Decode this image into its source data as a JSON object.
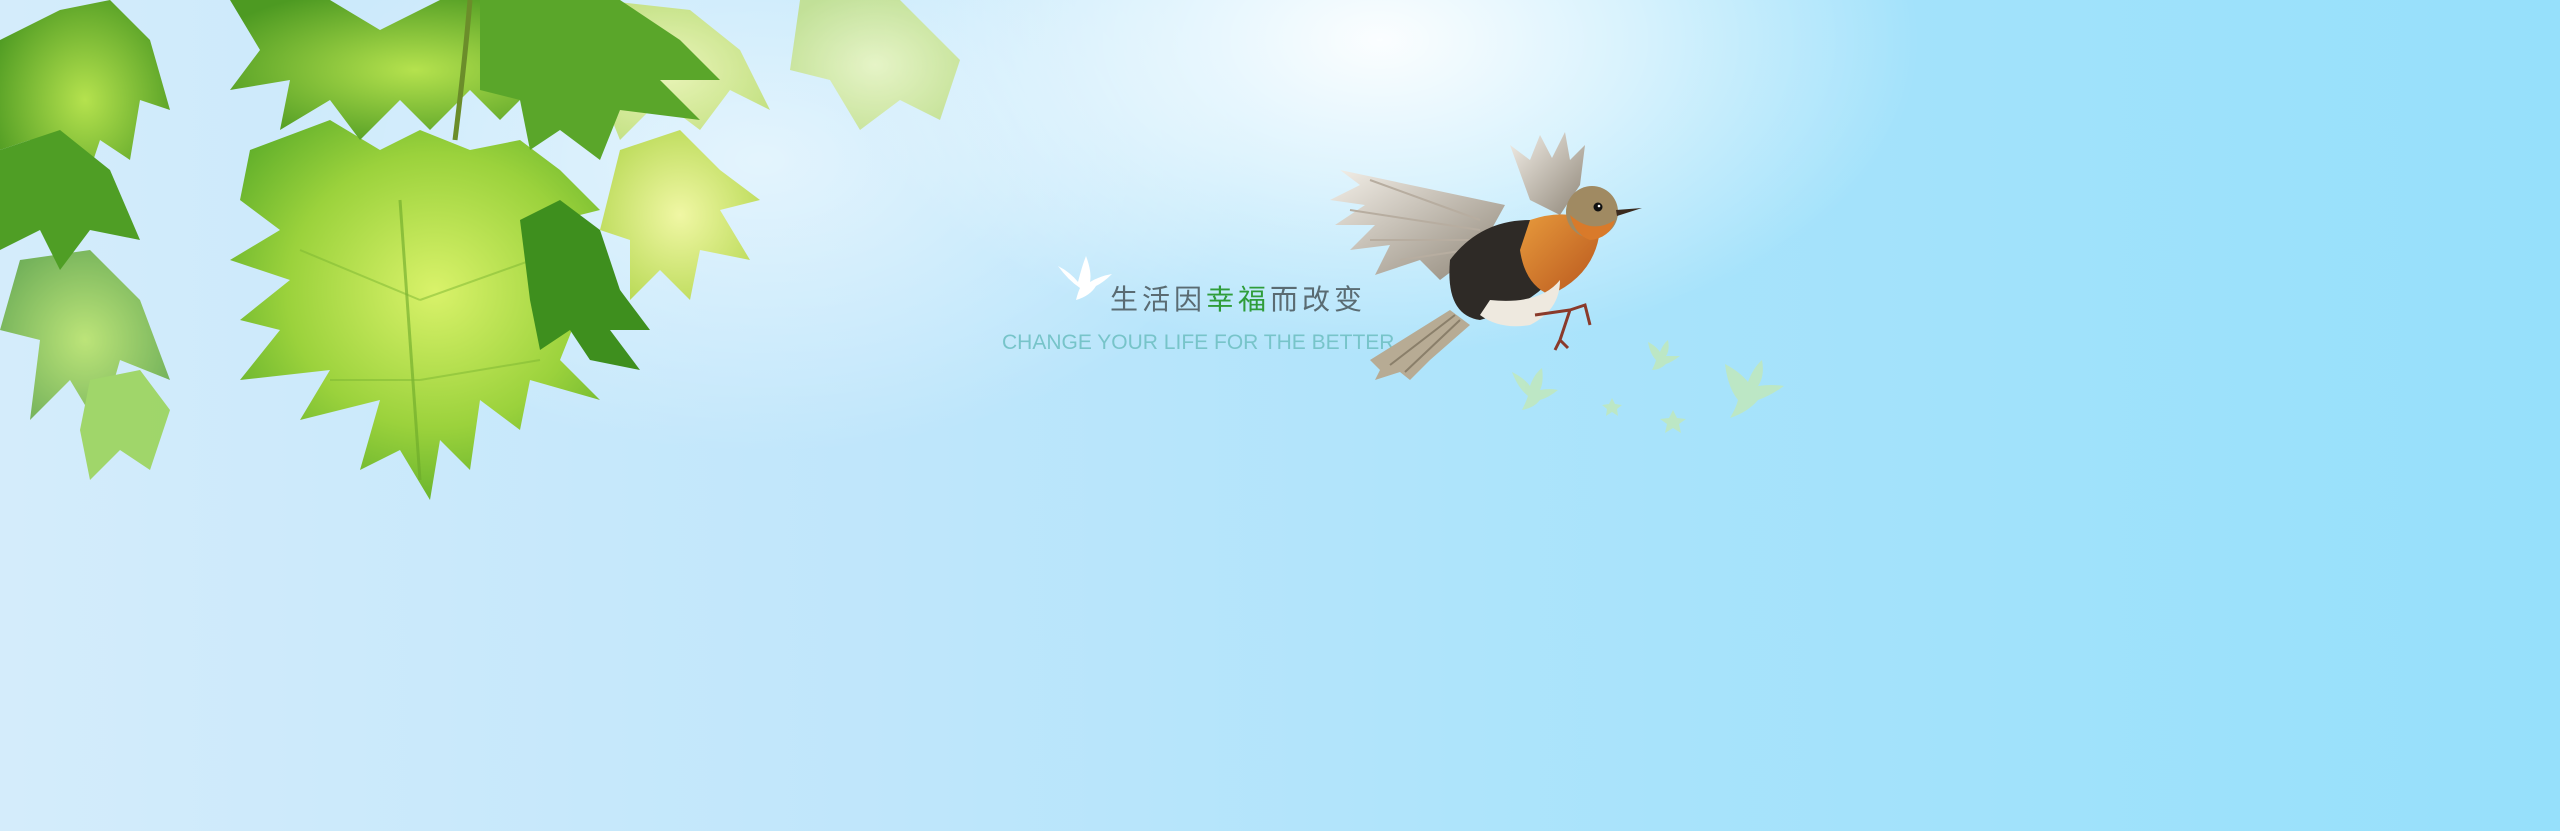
{
  "banner": {
    "slogan": {
      "before": "生活因",
      "highlight": "幸福",
      "after": "而改变"
    },
    "subtitle": "CHANGE YOUR LIFE FOR THE BETTER"
  },
  "colors": {
    "sky_left": "#d4ecfb",
    "sky_right": "#96e0fb",
    "leaf_green": "#8fd03a",
    "slogan_text": "#5a6b72",
    "slogan_highlight": "#2f9d3a",
    "subtitle_text": "#77c4c9"
  },
  "icons": {
    "dove": "white-dove-icon",
    "robin": "flying-robin-image",
    "small_birds": "small-bird-silhouettes",
    "leaves": "maple-leaves-image"
  }
}
